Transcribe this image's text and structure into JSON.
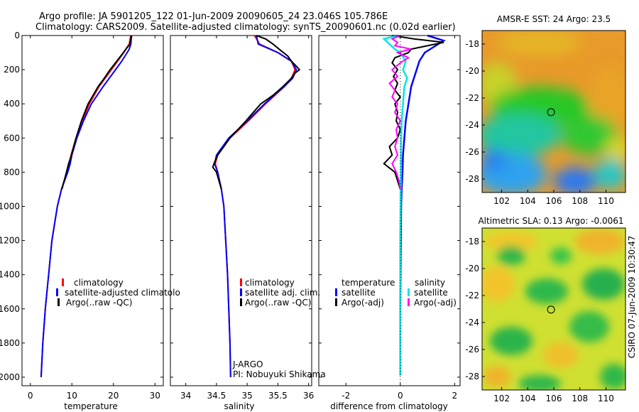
{
  "header": {
    "line1": "Argo profile: JA 5901205_122 01-Jun-2009 20090605_24 23.046S 105.786E",
    "line2": "Climatology: CARS2009. Satellite-adjusted climatology: synTS_20090601.nc (0.02d earlier)"
  },
  "side_label": "CSIRO 07-Jun-2009 10:30:47",
  "colors": {
    "climatology": "#ff0000",
    "satellite": "#0000ff",
    "argo": "#000000",
    "sal_satellite": "#00e5e5",
    "sal_argo": "#ff00ff"
  },
  "chart_data": [
    {
      "type": "line",
      "title": "",
      "xlabel": "temperature",
      "ylabel": "",
      "xlim": [
        -2,
        32
      ],
      "ylim": [
        2050,
        0
      ],
      "xticks": [
        "0",
        "10",
        "20",
        "30"
      ],
      "yticks": [
        "0",
        "200",
        "400",
        "600",
        "800",
        "1000",
        "1200",
        "1400",
        "1600",
        "1800",
        "2000"
      ],
      "legend": [
        "climatology",
        "satellite-adjusted climatolo",
        "Argo(..raw -QC)"
      ],
      "series": [
        {
          "name": "climatology",
          "depth": [
            0,
            20,
            50,
            80,
            100,
            150,
            200,
            300,
            400,
            500,
            600,
            700,
            750,
            800,
            900,
            1000,
            1200,
            1400,
            1600,
            1800,
            2000
          ],
          "values": [
            24.2,
            24.0,
            23.8,
            23.0,
            22.5,
            21.0,
            19.5,
            16.5,
            14.2,
            12.5,
            11.0,
            9.8,
            9.4,
            8.8,
            7.5,
            6.5,
            5.2,
            4.4,
            3.6,
            3.0,
            2.6
          ]
        },
        {
          "name": "satellite-adjusted climatology",
          "depth": [
            0,
            20,
            50,
            80,
            100,
            150,
            200,
            300,
            400,
            500,
            600,
            700,
            750,
            800,
            900,
            1000,
            1200,
            1400,
            1600,
            1800,
            2000
          ],
          "values": [
            24.4,
            24.3,
            24.2,
            23.8,
            23.3,
            22.0,
            20.5,
            17.5,
            14.7,
            12.8,
            11.2,
            10.0,
            9.6,
            9.0,
            7.5,
            6.5,
            5.2,
            4.4,
            3.6,
            3.0,
            2.6
          ]
        },
        {
          "name": "Argo(..raw -QC)",
          "depth": [
            0,
            20,
            50,
            80,
            100,
            150,
            200,
            250,
            300,
            400,
            500,
            600,
            700,
            750,
            800,
            900
          ],
          "values": [
            24.3,
            24.2,
            24.0,
            23.0,
            22.4,
            20.8,
            19.2,
            17.8,
            16.3,
            13.9,
            12.3,
            11.0,
            9.9,
            9.2,
            8.7,
            7.6
          ]
        }
      ]
    },
    {
      "type": "line",
      "title": "",
      "xlabel": "salinity",
      "ylabel": "",
      "xlim": [
        33.75,
        36.05
      ],
      "ylim": [
        2050,
        0
      ],
      "xticks": [
        "34",
        "34.5",
        "35",
        "35.5",
        "36"
      ],
      "legend": [
        "climatology",
        "satellite adj. clim.",
        "Argo(..raw -QC)"
      ],
      "annotations": [
        "J-ARGO",
        "PI: Nobuyuki Shikama"
      ],
      "series": [
        {
          "name": "climatology",
          "depth": [
            0,
            50,
            100,
            150,
            200,
            250,
            300,
            400,
            500,
            600,
            700,
            750,
            800,
            900,
            1000,
            1200,
            1400,
            1600,
            1800,
            2000
          ],
          "values": [
            35.12,
            35.2,
            35.5,
            35.72,
            35.78,
            35.72,
            35.6,
            35.3,
            35.02,
            34.72,
            34.52,
            34.48,
            34.52,
            34.58,
            34.62,
            34.65,
            34.68,
            34.7,
            34.72,
            34.73
          ]
        },
        {
          "name": "satellite adj. clim.",
          "depth": [
            0,
            50,
            100,
            150,
            200,
            250,
            300,
            400,
            500,
            600,
            700,
            750,
            800,
            900,
            1000,
            1200,
            1400,
            1600,
            1800,
            2000
          ],
          "values": [
            35.15,
            35.18,
            35.5,
            35.72,
            35.8,
            35.74,
            35.6,
            35.28,
            35.0,
            34.7,
            34.5,
            34.47,
            34.52,
            34.58,
            34.62,
            34.65,
            34.68,
            34.7,
            34.72,
            34.73
          ]
        },
        {
          "name": "Argo(..raw -QC)",
          "depth": [
            0,
            20,
            50,
            80,
            120,
            150,
            180,
            200,
            220,
            250,
            300,
            350,
            400,
            450,
            500,
            550,
            600,
            650,
            700,
            750,
            770,
            800,
            900
          ],
          "values": [
            35.15,
            35.3,
            35.42,
            35.52,
            35.66,
            35.72,
            35.8,
            35.85,
            35.78,
            35.72,
            35.58,
            35.42,
            35.22,
            35.1,
            34.98,
            34.85,
            34.72,
            34.62,
            34.52,
            34.46,
            34.44,
            34.5,
            34.58
          ]
        }
      ]
    },
    {
      "type": "line",
      "title": "",
      "xlabel": "difference from climatology",
      "ylabel": "",
      "xlim": [
        -3,
        2.2
      ],
      "ylim": [
        2050,
        0
      ],
      "xticks": [
        "-2",
        "0",
        "2"
      ],
      "legend_headers": [
        "temperature",
        "salinity"
      ],
      "legend": [
        "satellite",
        "Argo(-adj)",
        "satellite",
        "Argo(-adj)"
      ],
      "series": [
        {
          "name": "temperature satellite",
          "depth": [
            0,
            30,
            50,
            100,
            150,
            200,
            300,
            400,
            500,
            600,
            700,
            800,
            900,
            1000,
            1200,
            1400,
            1600,
            1800,
            1990
          ],
          "values": [
            1.0,
            1.6,
            1.4,
            0.9,
            0.7,
            0.6,
            0.4,
            0.3,
            0.2,
            0.15,
            0.1,
            0.08,
            0.05,
            0.03,
            0.02,
            0.01,
            0.0,
            0.0,
            0.0
          ]
        },
        {
          "name": "temperature Argo(-adj)",
          "depth": [
            0,
            20,
            40,
            60,
            80,
            100,
            130,
            160,
            200,
            240,
            280,
            320,
            360,
            400,
            450,
            500,
            550,
            600,
            650,
            700,
            750,
            800,
            850,
            900
          ],
          "values": [
            -0.3,
            0.5,
            1.6,
            1.0,
            0.4,
            0.3,
            -0.2,
            -0.3,
            -0.1,
            -0.25,
            -0.1,
            -0.2,
            0.0,
            -0.2,
            -0.1,
            -0.15,
            0.0,
            -0.1,
            -0.4,
            -0.3,
            -0.6,
            -0.2,
            -0.1,
            0.0
          ]
        },
        {
          "name": "salinity satellite",
          "depth": [
            0,
            20,
            50,
            80,
            100,
            150,
            200,
            250,
            300,
            400,
            500,
            600,
            800,
            1000,
            1200,
            1400,
            1600,
            1800,
            1990
          ],
          "values": [
            -0.1,
            -0.6,
            -0.4,
            -0.2,
            0.0,
            0.2,
            0.1,
            0.25,
            0.15,
            0.1,
            0.05,
            0.03,
            0.02,
            0.01,
            0.0,
            0.0,
            0.0,
            0.0,
            0.0
          ]
        },
        {
          "name": "salinity Argo(-adj)",
          "depth": [
            0,
            20,
            40,
            60,
            80,
            100,
            130,
            160,
            200,
            240,
            280,
            320,
            360,
            400,
            450,
            500,
            550,
            600,
            650,
            700,
            750,
            800,
            850,
            900
          ],
          "values": [
            0.0,
            -0.3,
            -0.1,
            -0.2,
            0.4,
            -0.1,
            0.3,
            0.0,
            -0.3,
            -0.1,
            -0.4,
            -0.2,
            -0.3,
            -0.1,
            -0.2,
            0.0,
            -0.15,
            -0.1,
            -0.2,
            -0.1,
            -0.3,
            -0.15,
            -0.05,
            0.0
          ]
        }
      ]
    },
    {
      "type": "heatmap",
      "title": "AMSR-E SST: 24 Argo: 23.5",
      "xticks": [
        "102",
        "104",
        "106",
        "108",
        "110"
      ],
      "yticks": [
        "-18",
        "-20",
        "-22",
        "-24",
        "-26",
        "-28"
      ],
      "xlim": [
        100.5,
        111.5
      ],
      "ylim": [
        -29,
        -17
      ],
      "marker": {
        "lon": 105.786,
        "lat": -23.046
      }
    },
    {
      "type": "heatmap",
      "title": "Altimetric SLA: 0.13 Argo: -0.0061",
      "xticks": [
        "102",
        "104",
        "106",
        "108",
        "110"
      ],
      "yticks": [
        "-18",
        "-20",
        "-22",
        "-24",
        "-26",
        "-28"
      ],
      "xlim": [
        100.5,
        111.5
      ],
      "ylim": [
        -29,
        -17
      ],
      "marker": {
        "lon": 105.786,
        "lat": -23.046
      }
    }
  ]
}
